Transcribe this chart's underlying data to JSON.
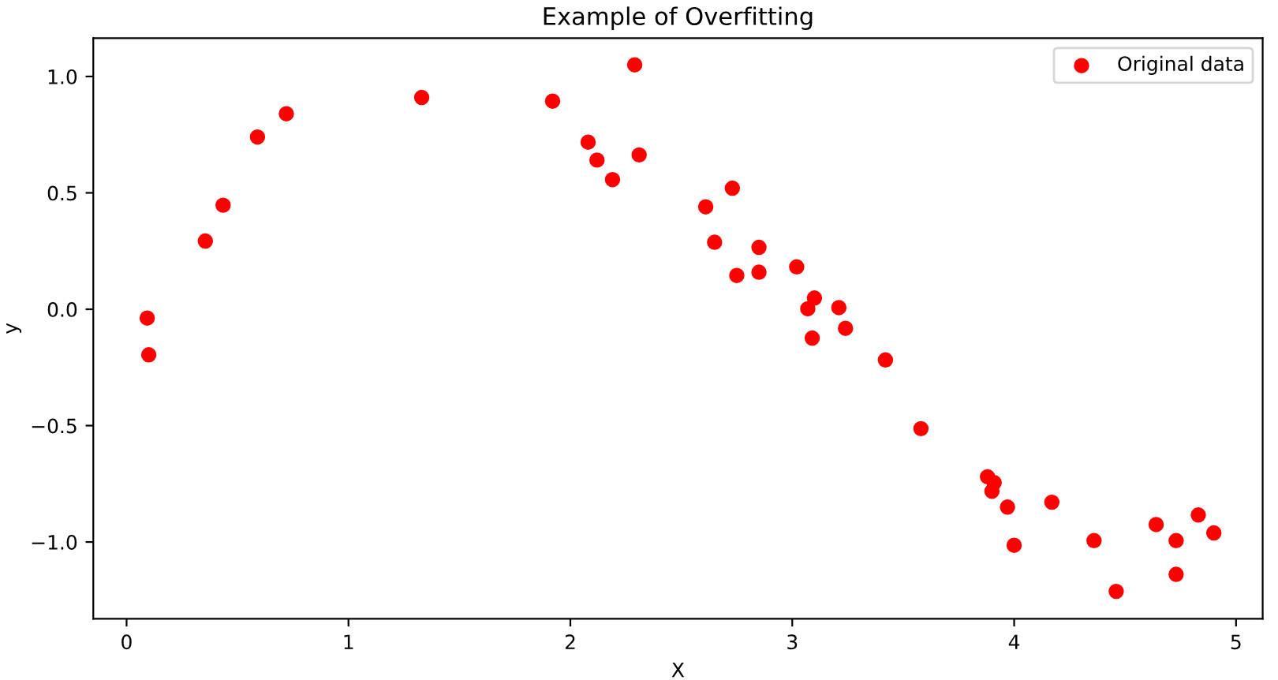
{
  "chart_data": {
    "type": "scatter",
    "title": "Example of Overfitting",
    "xlabel": "X",
    "ylabel": "y",
    "xlim": [
      -0.15,
      5.12
    ],
    "ylim": [
      -1.33,
      1.165
    ],
    "xticks": [
      0,
      1,
      2,
      3,
      4,
      5
    ],
    "yticks": [
      {
        "value": -1.0,
        "label": "−1.0"
      },
      {
        "value": -0.5,
        "label": "−0.5"
      },
      {
        "value": 0.0,
        "label": "0.0"
      },
      {
        "value": 0.5,
        "label": "0.5"
      },
      {
        "value": 1.0,
        "label": "1.0"
      }
    ],
    "grid": false,
    "legend": "top right",
    "marker": "circle",
    "series": [
      {
        "name": "Original data",
        "color": "#ff0000",
        "x": [
          0.093,
          0.1,
          0.355,
          0.435,
          0.59,
          0.72,
          1.33,
          1.92,
          2.08,
          2.12,
          2.19,
          2.29,
          2.31,
          2.73,
          2.61,
          2.65,
          2.85,
          2.75,
          2.85,
          3.02,
          3.1,
          3.07,
          3.21,
          3.24,
          3.09,
          3.42,
          3.58,
          3.88,
          3.91,
          3.9,
          3.97,
          4.17,
          4.0,
          4.36,
          4.46,
          4.64,
          4.73,
          4.73,
          4.83,
          4.9
        ],
        "values": [
          -0.038,
          -0.196,
          0.293,
          0.447,
          0.74,
          0.84,
          0.91,
          0.894,
          0.718,
          0.641,
          0.557,
          1.05,
          0.663,
          0.52,
          0.44,
          0.288,
          0.266,
          0.145,
          0.159,
          0.182,
          0.048,
          0.002,
          0.007,
          -0.082,
          -0.124,
          -0.218,
          -0.513,
          -0.72,
          -0.745,
          -0.782,
          -0.85,
          -0.829,
          -1.014,
          -0.994,
          -1.212,
          -0.925,
          -0.994,
          -1.139,
          -0.884,
          -0.961
        ]
      }
    ]
  }
}
